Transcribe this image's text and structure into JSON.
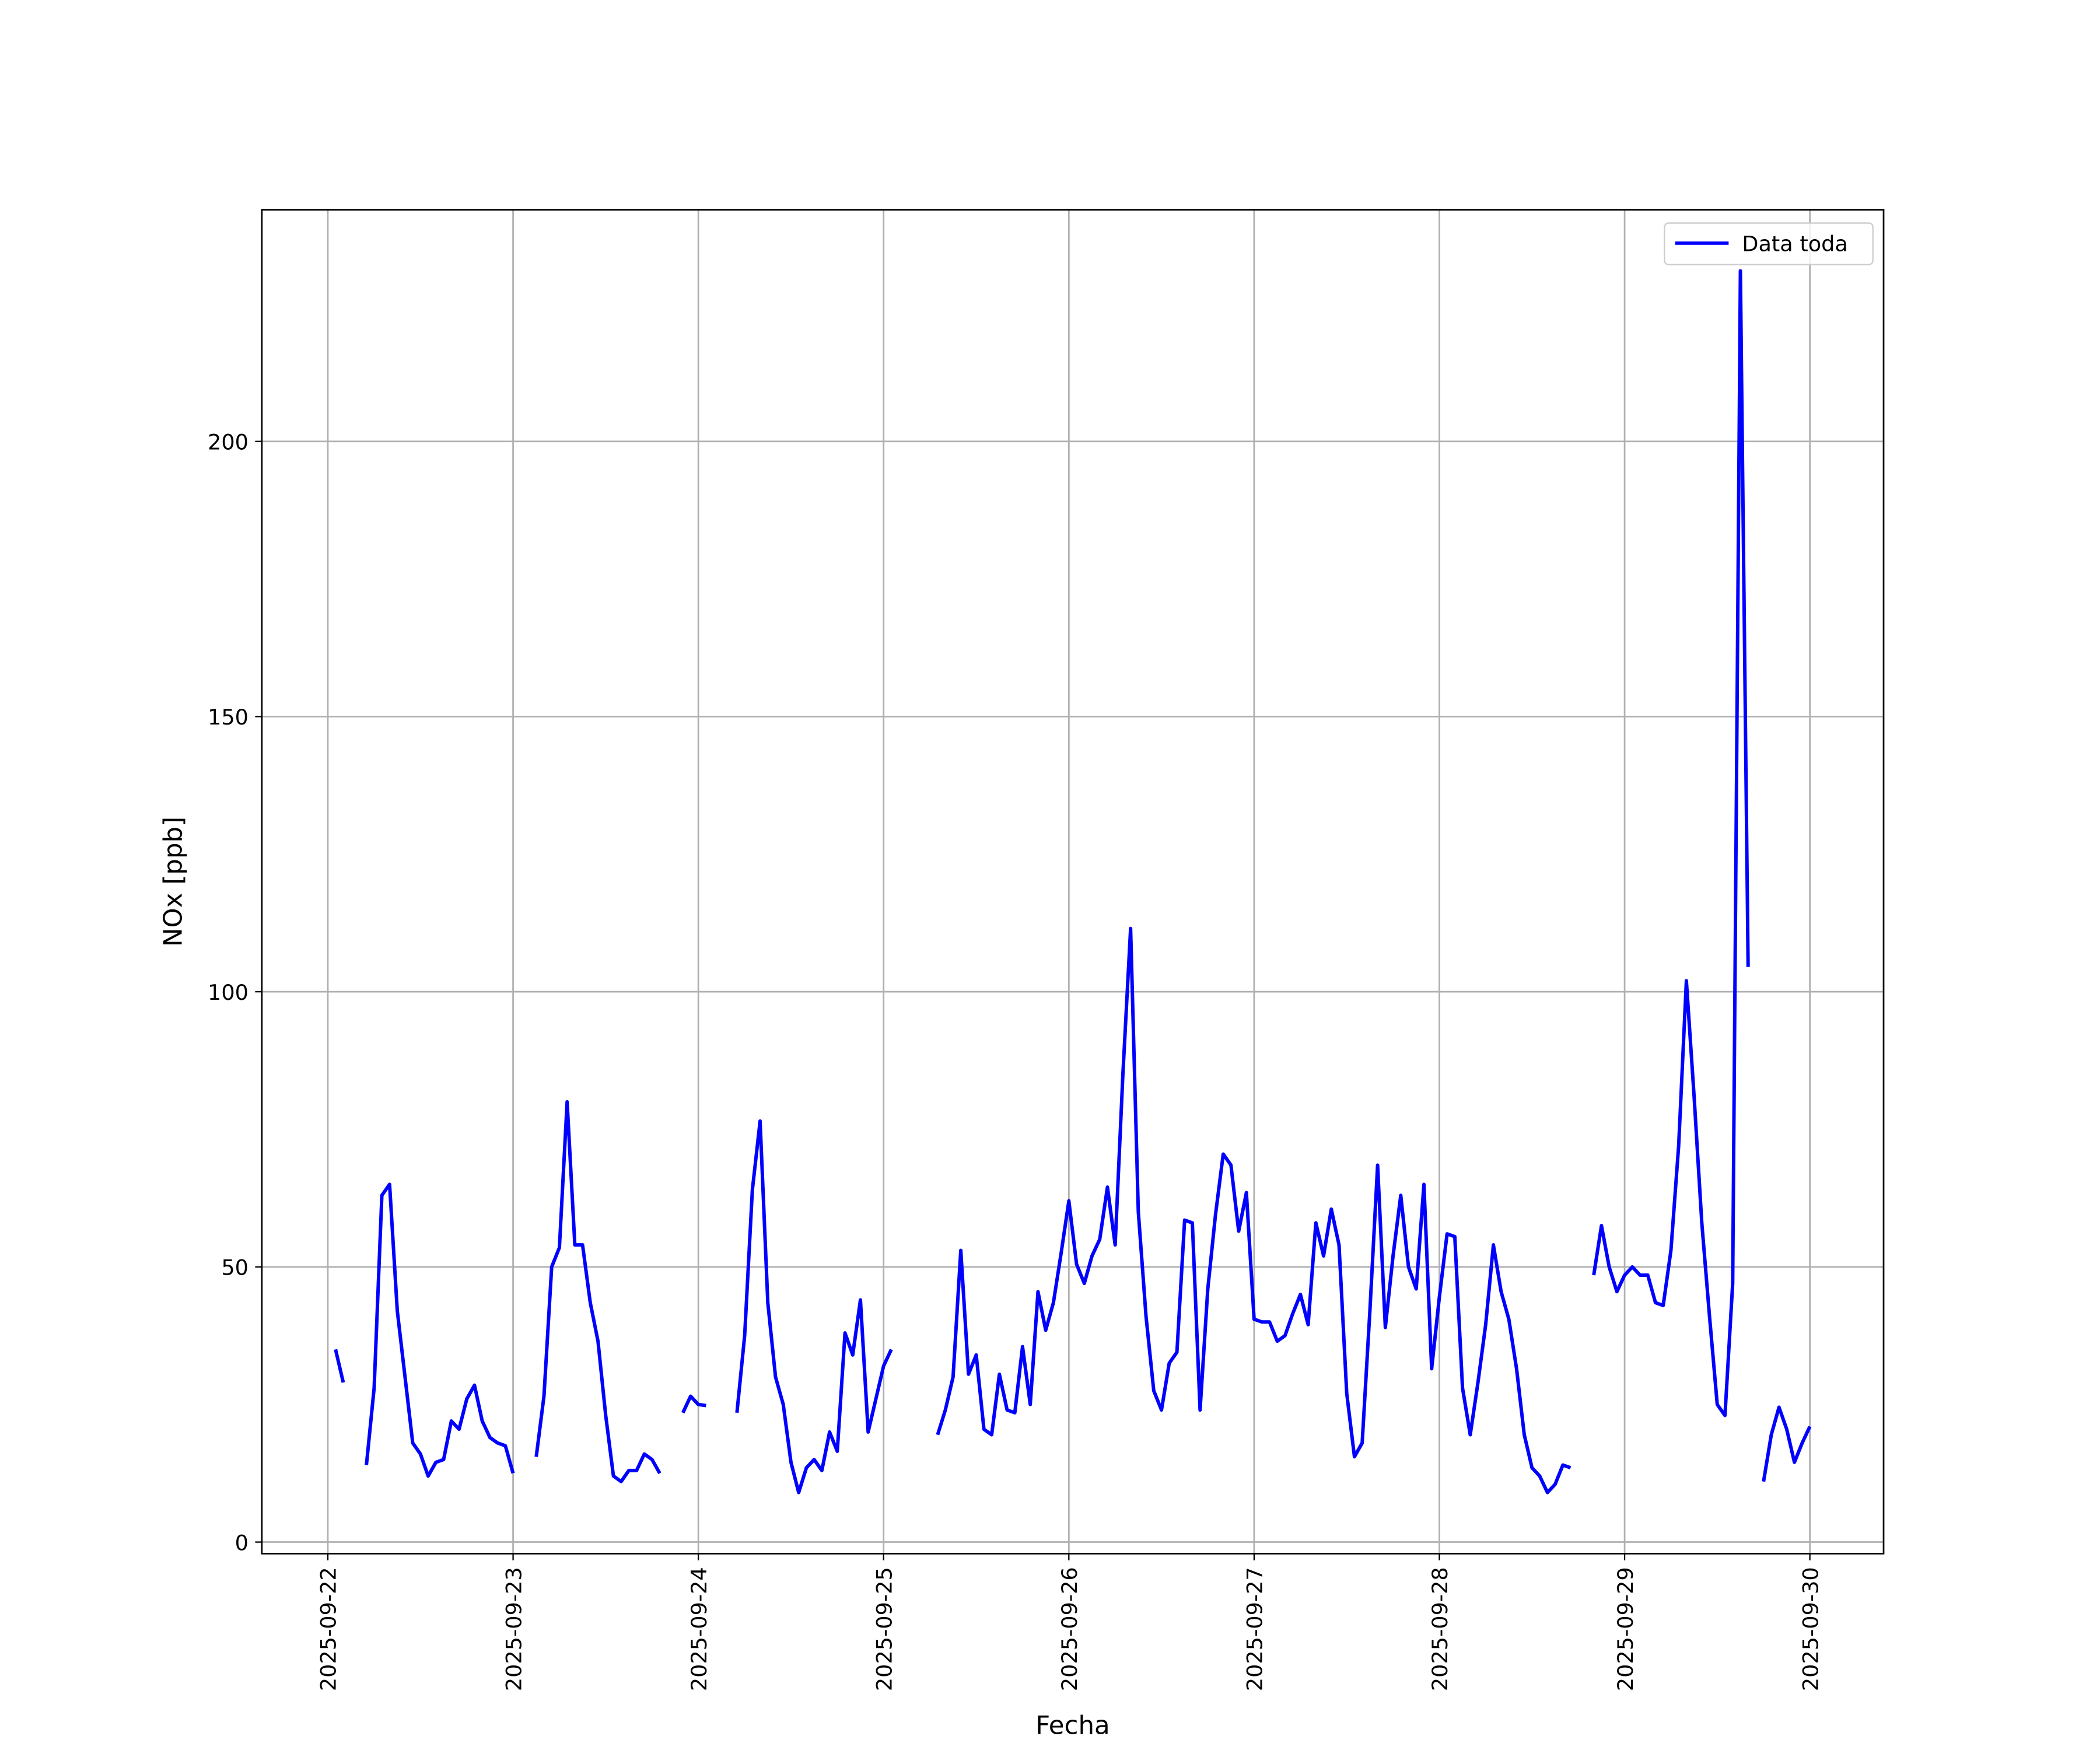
{
  "chart_data": {
    "type": "line",
    "xlabel": "Fecha",
    "ylabel": "NOx [ppb]",
    "legend": "upper right",
    "grid": true,
    "xlim": [
      "2025-09-21 15:27",
      "2025-09-30 09:33"
    ],
    "ylim": [
      -2.1,
      242.1
    ],
    "xticks": [
      "2025-09-22",
      "2025-09-23",
      "2025-09-24",
      "2025-09-25",
      "2025-09-26",
      "2025-09-27",
      "2025-09-28",
      "2025-09-29",
      "2025-09-30"
    ],
    "yticks": [
      0,
      50,
      100,
      150,
      200
    ],
    "x": [
      "2025-09-22 01:00",
      "2025-09-22 02:00",
      "2025-09-22 03:00",
      "2025-09-22 05:00",
      "2025-09-22 06:00",
      "2025-09-22 07:00",
      "2025-09-22 08:00",
      "2025-09-22 09:00",
      "2025-09-22 10:00",
      "2025-09-22 11:00",
      "2025-09-22 12:00",
      "2025-09-22 13:00",
      "2025-09-22 14:00",
      "2025-09-22 15:00",
      "2025-09-22 16:00",
      "2025-09-22 17:00",
      "2025-09-22 18:00",
      "2025-09-22 19:00",
      "2025-09-22 20:00",
      "2025-09-22 21:00",
      "2025-09-22 22:00",
      "2025-09-22 23:00",
      "2025-09-23 00:00",
      "2025-09-23 01:00",
      "2025-09-23 03:00",
      "2025-09-23 04:00",
      "2025-09-23 05:00",
      "2025-09-23 06:00",
      "2025-09-23 07:00",
      "2025-09-23 08:00",
      "2025-09-23 09:00",
      "2025-09-23 10:00",
      "2025-09-23 11:00",
      "2025-09-23 12:00",
      "2025-09-23 13:00",
      "2025-09-23 14:00",
      "2025-09-23 15:00",
      "2025-09-23 16:00",
      "2025-09-23 17:00",
      "2025-09-23 18:00",
      "2025-09-23 19:00",
      "2025-09-23 20:00",
      "2025-09-23 22:00",
      "2025-09-23 23:00",
      "2025-09-24 00:00",
      "2025-09-24 01:00",
      "2025-09-24 02:00",
      "2025-09-24 05:00",
      "2025-09-24 06:00",
      "2025-09-24 07:00",
      "2025-09-24 08:00",
      "2025-09-24 09:00",
      "2025-09-24 10:00",
      "2025-09-24 11:00",
      "2025-09-24 12:00",
      "2025-09-24 13:00",
      "2025-09-24 14:00",
      "2025-09-24 15:00",
      "2025-09-24 16:00",
      "2025-09-24 17:00",
      "2025-09-24 18:00",
      "2025-09-24 19:00",
      "2025-09-24 20:00",
      "2025-09-24 21:00",
      "2025-09-24 22:00",
      "2025-09-24 23:00",
      "2025-09-25 00:00",
      "2025-09-25 01:00",
      "2025-09-25 02:00",
      "2025-09-25 07:00",
      "2025-09-25 08:00",
      "2025-09-25 09:00",
      "2025-09-25 10:00",
      "2025-09-25 11:00",
      "2025-09-25 12:00",
      "2025-09-25 13:00",
      "2025-09-25 14:00",
      "2025-09-25 15:00",
      "2025-09-25 16:00",
      "2025-09-25 17:00",
      "2025-09-25 18:00",
      "2025-09-25 19:00",
      "2025-09-25 20:00",
      "2025-09-25 21:00",
      "2025-09-25 22:00",
      "2025-09-25 23:00",
      "2025-09-26 00:00",
      "2025-09-26 01:00",
      "2025-09-26 02:00",
      "2025-09-26 03:00",
      "2025-09-26 04:00",
      "2025-09-26 05:00",
      "2025-09-26 06:00",
      "2025-09-26 07:00",
      "2025-09-26 08:00",
      "2025-09-26 09:00",
      "2025-09-26 10:00",
      "2025-09-26 11:00",
      "2025-09-26 12:00",
      "2025-09-26 13:00",
      "2025-09-26 14:00",
      "2025-09-26 15:00",
      "2025-09-26 16:00",
      "2025-09-26 17:00",
      "2025-09-26 18:00",
      "2025-09-26 19:00",
      "2025-09-26 20:00",
      "2025-09-26 21:00",
      "2025-09-26 22:00",
      "2025-09-26 23:00",
      "2025-09-27 00:00",
      "2025-09-27 01:00",
      "2025-09-27 02:00",
      "2025-09-27 03:00",
      "2025-09-27 04:00",
      "2025-09-27 05:00",
      "2025-09-27 06:00",
      "2025-09-27 07:00",
      "2025-09-27 08:00",
      "2025-09-27 09:00",
      "2025-09-27 10:00",
      "2025-09-27 11:00",
      "2025-09-27 12:00",
      "2025-09-27 13:00",
      "2025-09-27 14:00",
      "2025-09-27 15:00",
      "2025-09-27 16:00",
      "2025-09-27 17:00",
      "2025-09-27 18:00",
      "2025-09-27 19:00",
      "2025-09-27 20:00",
      "2025-09-27 21:00",
      "2025-09-27 22:00",
      "2025-09-27 23:00",
      "2025-09-28 00:00",
      "2025-09-28 01:00",
      "2025-09-28 02:00",
      "2025-09-28 03:00",
      "2025-09-28 04:00",
      "2025-09-28 05:00",
      "2025-09-28 06:00",
      "2025-09-28 07:00",
      "2025-09-28 08:00",
      "2025-09-28 09:00",
      "2025-09-28 10:00",
      "2025-09-28 11:00",
      "2025-09-28 12:00",
      "2025-09-28 13:00",
      "2025-09-28 14:00",
      "2025-09-28 15:00",
      "2025-09-28 16:00",
      "2025-09-28 17:00",
      "2025-09-28 18:00",
      "2025-09-28 20:00",
      "2025-09-28 21:00",
      "2025-09-28 22:00",
      "2025-09-28 23:00",
      "2025-09-29 00:00",
      "2025-09-29 01:00",
      "2025-09-29 02:00",
      "2025-09-29 03:00",
      "2025-09-29 04:00",
      "2025-09-29 05:00",
      "2025-09-29 06:00",
      "2025-09-29 07:00",
      "2025-09-29 08:00",
      "2025-09-29 09:00",
      "2025-09-29 10:00",
      "2025-09-29 11:00",
      "2025-09-29 12:00",
      "2025-09-29 13:00",
      "2025-09-29 14:00",
      "2025-09-29 15:00",
      "2025-09-29 16:00",
      "2025-09-29 17:00",
      "2025-09-29 18:00",
      "2025-09-29 19:00",
      "2025-09-29 20:00",
      "2025-09-29 21:00",
      "2025-09-29 22:00",
      "2025-09-29 23:00",
      "2025-09-30 00:00"
    ],
    "series": [
      {
        "name": "Data toda",
        "color": "#0000ff",
        "values": [
          35,
          29,
          null,
          14,
          28,
          63,
          65,
          42,
          30,
          18,
          16,
          12,
          14.5,
          15,
          22,
          20.5,
          26,
          28.5,
          22,
          19,
          18,
          17.5,
          12.5,
          null,
          15.5,
          26.5,
          50,
          53.5,
          80,
          54,
          54,
          43.5,
          36.5,
          23,
          12,
          11,
          13,
          13,
          16,
          15,
          12.5,
          null,
          23.5,
          26.5,
          25,
          24.8,
          null,
          23.5,
          37.5,
          64,
          76.5,
          43.5,
          30,
          25,
          14.5,
          9,
          13.5,
          15,
          13,
          20,
          16.5,
          38,
          34,
          44,
          20,
          26,
          32,
          35,
          null,
          19.5,
          24,
          30,
          53,
          30.5,
          34,
          20.5,
          19.5,
          30.5,
          24,
          23.5,
          35.5,
          25,
          45.5,
          38.5,
          43.5,
          52.5,
          62,
          50.5,
          47,
          52,
          55,
          64.5,
          54,
          85,
          111.5,
          60,
          41,
          27.5,
          24,
          32.5,
          34.5,
          58.5,
          58,
          24,
          46,
          59.5,
          70.5,
          68.5,
          56.5,
          63.5,
          40.5,
          40,
          40,
          36.5,
          37.5,
          41.5,
          45,
          39.5,
          58,
          52,
          60.5,
          54,
          27,
          15.5,
          18,
          42,
          68.5,
          39,
          52,
          63,
          50,
          46,
          65,
          31.5,
          44.5,
          56,
          55.5,
          28,
          19.5,
          29,
          39.5,
          54,
          45.5,
          40.5,
          31.5,
          19.5,
          13.5,
          12,
          9,
          10.5,
          14,
          13.5,
          null,
          48.5,
          57.5,
          50,
          45.5,
          48.5,
          50,
          48.5,
          48.5,
          43.5,
          43,
          53,
          72,
          102,
          81,
          58,
          41,
          25,
          23,
          47,
          231,
          104.5,
          null,
          11,
          19.5,
          24.5,
          20.5,
          14.5,
          18,
          21
        ]
      }
    ]
  }
}
